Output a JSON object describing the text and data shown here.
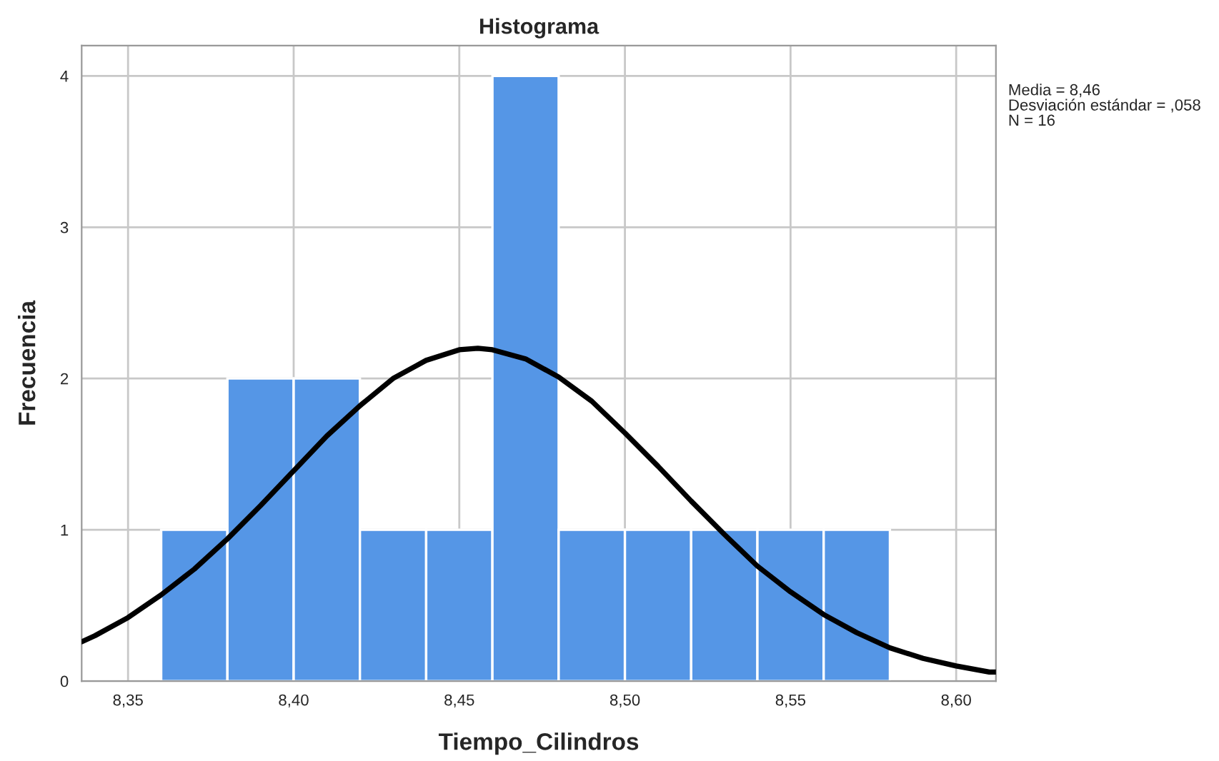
{
  "chart_data": {
    "type": "histogram",
    "title": "Histograma",
    "xlabel": "Tiempo_Cilindros",
    "ylabel": "Frecuencia",
    "color": "#5596e6",
    "bins": [
      8.36,
      8.38,
      8.4,
      8.42,
      8.44,
      8.46,
      8.48,
      8.5,
      8.52,
      8.54,
      8.56,
      8.58
    ],
    "values": [
      1,
      2,
      2,
      1,
      1,
      4,
      1,
      1,
      1,
      1,
      1
    ],
    "series": [
      {
        "type": "line",
        "color": "#000000",
        "x": [
          8.336,
          8.34,
          8.35,
          8.36,
          8.37,
          8.38,
          8.39,
          8.4,
          8.41,
          8.42,
          8.43,
          8.44,
          8.45,
          8.4556,
          8.46,
          8.47,
          8.48,
          8.49,
          8.5,
          8.51,
          8.52,
          8.53,
          8.54,
          8.55,
          8.56,
          8.57,
          8.58,
          8.59,
          8.6,
          8.61,
          8.612
        ],
        "values": [
          0.26,
          0.3,
          0.42,
          0.57,
          0.74,
          0.94,
          1.16,
          1.39,
          1.62,
          1.82,
          2.0,
          2.12,
          2.19,
          2.2,
          2.19,
          2.13,
          2.01,
          1.85,
          1.64,
          1.42,
          1.19,
          0.97,
          0.76,
          0.59,
          0.44,
          0.32,
          0.22,
          0.15,
          0.1,
          0.06,
          0.06
        ]
      }
    ],
    "xlim": [
      8.336,
      8.612
    ],
    "ylim": [
      0,
      4.2
    ],
    "xticks": [
      {
        "value": 8.35,
        "label": "8,35"
      },
      {
        "value": 8.4,
        "label": "8,40"
      },
      {
        "value": 8.45,
        "label": "8,45"
      },
      {
        "value": 8.5,
        "label": "8,50"
      },
      {
        "value": 8.55,
        "label": "8,55"
      },
      {
        "value": 8.6,
        "label": "8,60"
      }
    ],
    "yticks": [
      0,
      1,
      2,
      3,
      4
    ],
    "grid": true,
    "annotations": [
      "Media = 8,46",
      "Desviación estándar = ,058",
      "N = 16"
    ]
  }
}
